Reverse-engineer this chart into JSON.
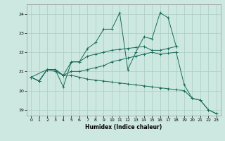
{
  "xlabel": "Humidex (Indice chaleur)",
  "bg_color": "#cce8e0",
  "grid_color": "#aaccC4",
  "line_color": "#1a6b5a",
  "xlim": [
    -0.5,
    23.5
  ],
  "ylim": [
    18.7,
    24.5
  ],
  "yticks": [
    19,
    20,
    21,
    22,
    23,
    24
  ],
  "xticks": [
    0,
    1,
    2,
    3,
    4,
    5,
    6,
    7,
    8,
    9,
    10,
    11,
    12,
    13,
    14,
    15,
    16,
    17,
    18,
    19,
    20,
    21,
    22,
    23
  ],
  "line1_x": [
    0,
    1,
    2,
    3,
    4,
    5,
    6,
    7,
    8,
    9,
    10,
    11,
    12,
    13,
    14,
    15,
    16,
    17,
    18
  ],
  "line1_y": [
    20.7,
    20.5,
    21.1,
    21.1,
    20.2,
    21.5,
    21.5,
    22.2,
    22.5,
    23.2,
    23.2,
    24.05,
    21.1,
    22.0,
    22.8,
    22.7,
    24.05,
    23.8,
    22.3
  ],
  "line2_x": [
    0,
    2,
    3,
    4,
    5,
    6,
    7,
    8,
    9,
    10,
    11,
    12,
    13,
    14,
    15,
    16,
    17,
    18
  ],
  "line2_y": [
    20.7,
    21.1,
    21.1,
    20.8,
    21.5,
    21.5,
    21.8,
    21.9,
    22.0,
    22.1,
    22.15,
    22.2,
    22.25,
    22.3,
    22.1,
    22.1,
    22.2,
    22.3
  ],
  "line3_x": [
    0,
    1,
    2,
    3,
    4,
    5,
    6,
    7,
    8,
    9,
    10,
    11,
    12,
    13,
    14,
    15,
    16,
    17,
    18,
    19,
    20,
    21,
    22,
    23
  ],
  "line3_y": [
    20.7,
    20.5,
    21.1,
    21.1,
    20.8,
    21.0,
    21.0,
    21.1,
    21.2,
    21.3,
    21.5,
    21.6,
    21.7,
    21.8,
    21.9,
    22.0,
    21.9,
    21.95,
    22.0,
    20.3,
    19.6,
    19.5,
    19.0,
    18.8
  ],
  "line4_x": [
    0,
    1,
    2,
    3,
    4,
    5,
    6,
    7,
    8,
    9,
    10,
    11,
    12,
    13,
    14,
    15,
    16,
    17,
    18,
    19,
    20,
    21,
    22,
    23
  ],
  "line4_y": [
    20.7,
    20.5,
    21.1,
    21.0,
    20.8,
    20.8,
    20.7,
    20.6,
    20.55,
    20.5,
    20.45,
    20.4,
    20.35,
    20.3,
    20.25,
    20.2,
    20.15,
    20.1,
    20.05,
    20.0,
    19.6,
    19.5,
    19.0,
    18.8
  ]
}
